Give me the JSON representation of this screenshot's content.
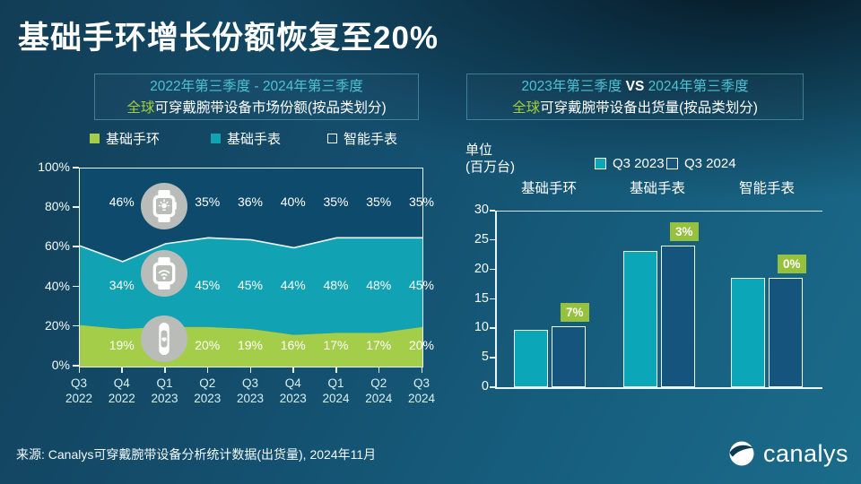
{
  "title": "基础手环增长份额恢复至20%",
  "left_panel": {
    "header": {
      "line1": "2022年第三季度 - 2024年第三季度",
      "highlight": "全球",
      "line2": "可穿戴腕带设备市场份额(按品类划分)"
    }
  },
  "right_panel": {
    "header": {
      "line1_a": "2023年第三季度",
      "line1_vs": " VS ",
      "line1_b": "2024年第三季度",
      "highlight": "全球",
      "line2": "可穿戴腕带设备出货量(按品类划分)"
    },
    "unit_line1": "单位",
    "unit_line2": "(百万台)"
  },
  "chart_data": [
    {
      "type": "area",
      "stacked": true,
      "title": "全球可穿戴腕带设备市场份额(按品类划分)",
      "x": [
        "Q3 2022",
        "Q4 2022",
        "Q1 2023",
        "Q2 2023",
        "Q3 2023",
        "Q4 2023",
        "Q1 2024",
        "Q2 2024",
        "Q3 2024"
      ],
      "ylim": [
        0,
        100
      ],
      "yticks": [
        "0%",
        "20%",
        "40%",
        "60%",
        "80%",
        "100%"
      ],
      "legend_position": "top",
      "series": [
        {
          "name": "基础手环",
          "color": "#a4cd49",
          "values": [
            21,
            19,
            20,
            20,
            19,
            16,
            17,
            17,
            20
          ],
          "shown_labels": [
            "",
            "19%",
            "",
            "20%",
            "19%",
            "16%",
            "17%",
            "17%",
            "20%"
          ]
        },
        {
          "name": "基础手表",
          "color": "#11a3b3",
          "values": [
            40,
            34,
            42,
            45,
            45,
            44,
            48,
            48,
            45
          ],
          "shown_labels": [
            "",
            "34%",
            "",
            "45%",
            "45%",
            "44%",
            "48%",
            "48%",
            "45%"
          ]
        },
        {
          "name": "智能手表",
          "color": "#0e4a6b",
          "values": [
            39,
            46,
            38,
            35,
            36,
            40,
            35,
            35,
            35
          ],
          "shown_labels": [
            "",
            "46%",
            "",
            "35%",
            "36%",
            "40%",
            "35%",
            "35%",
            "35%"
          ]
        }
      ]
    },
    {
      "type": "bar",
      "title": "全球可穿戴腕带设备出货量(按品类划分)",
      "ylabel": "单位(百万台)",
      "categories": [
        "基础手环",
        "基础手表",
        "智能手表"
      ],
      "ylim": [
        0,
        30
      ],
      "yticks": [
        0,
        5,
        10,
        15,
        20,
        25,
        30
      ],
      "series": [
        {
          "name": "Q3 2023",
          "color": "#0ba6b7",
          "values": [
            9.7,
            23.2,
            18.6
          ]
        },
        {
          "name": "Q3 2024",
          "color": "#15557d",
          "values": [
            10.4,
            24.0,
            18.6
          ]
        }
      ],
      "growth_labels": [
        "7%",
        "3%",
        "0%"
      ]
    }
  ],
  "colors": {
    "band_green": "#a4cd49",
    "watch_teal": "#11a3b3",
    "smart_blue": "#0e4a6b",
    "bar_2023": "#0ba6b7",
    "bar_2024": "#15557d",
    "badge_green": "#96c13d",
    "header_teal": "#4cc2d4",
    "highlight_green": "#a2cb3f"
  },
  "footer": {
    "source": "来源: Canalys可穿戴腕带设备分析统计数据(出货量), 2024年11月",
    "logo_text": "canalys"
  }
}
